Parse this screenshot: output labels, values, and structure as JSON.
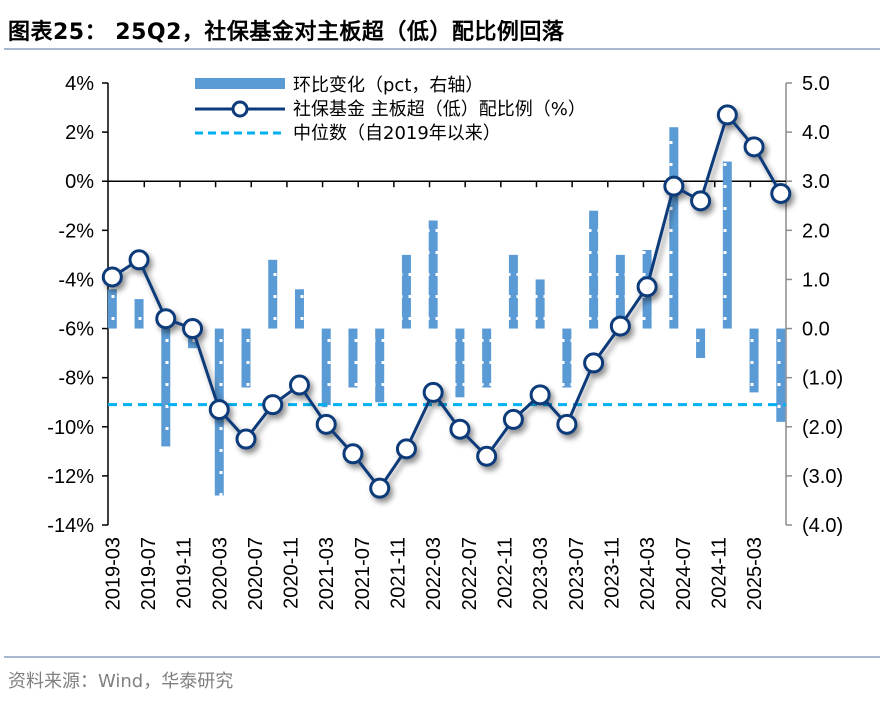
{
  "header": {
    "title": "图表25： 25Q2，社保基金对主板超（低）配比例回落"
  },
  "footer": {
    "source": "资料来源：Wind，华泰研究"
  },
  "colors": {
    "bar": "#5b9bd5",
    "line": "#0d3a7a",
    "median": "#00b0f0",
    "axis": "#000000",
    "right_axis": "#8c8c8c"
  },
  "chart_data": {
    "type": "bar+line",
    "title": "25Q2，社保基金对主板超（低）配比例回落",
    "x_start": "2019-03",
    "x_step_months": 3,
    "x_tick_labels": [
      "2019-03",
      "2019-07",
      "2019-11",
      "2020-03",
      "2020-07",
      "2020-11",
      "2021-03",
      "2021-07",
      "2021-11",
      "2022-03",
      "2022-07",
      "2022-11",
      "2023-03",
      "2023-07",
      "2023-11",
      "2024-03",
      "2024-07",
      "2024-11",
      "2025-03"
    ],
    "x_tick_step_months": 4,
    "left_axis": {
      "ylim": [
        -14,
        4
      ],
      "ticks": [
        4,
        2,
        0,
        -2,
        -4,
        -6,
        -8,
        -10,
        -12,
        -14
      ],
      "tick_labels": [
        "4%",
        "2%",
        "0%",
        "-2%",
        "-4%",
        "-6%",
        "-8%",
        "-10%",
        "-12%",
        "-14%"
      ]
    },
    "right_axis": {
      "ylim": [
        -4,
        5
      ],
      "ticks": [
        5,
        4,
        3,
        2,
        1,
        0,
        -1,
        -2,
        -3,
        -4
      ],
      "tick_labels": [
        "5.0",
        "4.0",
        "3.0",
        "2.0",
        "1.0",
        "0.0",
        "(1.0)",
        "(2.0)",
        "(3.0)",
        "(4.0)"
      ]
    },
    "series": [
      {
        "name": "环比变化（pct，右轴）",
        "type": "bar",
        "axis": "right",
        "values": [
          0.8,
          0.6,
          -2.4,
          -0.4,
          -3.4,
          -1.2,
          1.4,
          0.8,
          -1.6,
          -1.2,
          -1.5,
          1.5,
          2.2,
          -1.4,
          -1.2,
          1.5,
          1.0,
          -1.2,
          2.4,
          1.5,
          1.6,
          4.1,
          -0.6,
          3.4,
          -1.3,
          -1.9
        ]
      },
      {
        "name": "社保基金 主板超（低）配比例（%）",
        "type": "line",
        "axis": "left",
        "values": [
          -3.9,
          -3.2,
          -5.6,
          -6.0,
          -9.3,
          -10.5,
          -9.1,
          -8.3,
          -9.9,
          -11.1,
          -12.5,
          -10.9,
          -8.6,
          -10.1,
          -11.2,
          -9.7,
          -8.7,
          -9.9,
          -7.4,
          -5.9,
          -4.3,
          -0.2,
          -0.8,
          2.7,
          1.4,
          -0.5
        ]
      },
      {
        "name": "中位数（自2019年以来）",
        "type": "hline",
        "axis": "left",
        "value": -9.1
      }
    ],
    "legend": {
      "placement": "top-center",
      "entries": [
        "环比变化（pct，右轴）",
        "社保基金 主板超（低）配比例（%）",
        "中位数（自2019年以来）"
      ]
    },
    "grid": false
  }
}
